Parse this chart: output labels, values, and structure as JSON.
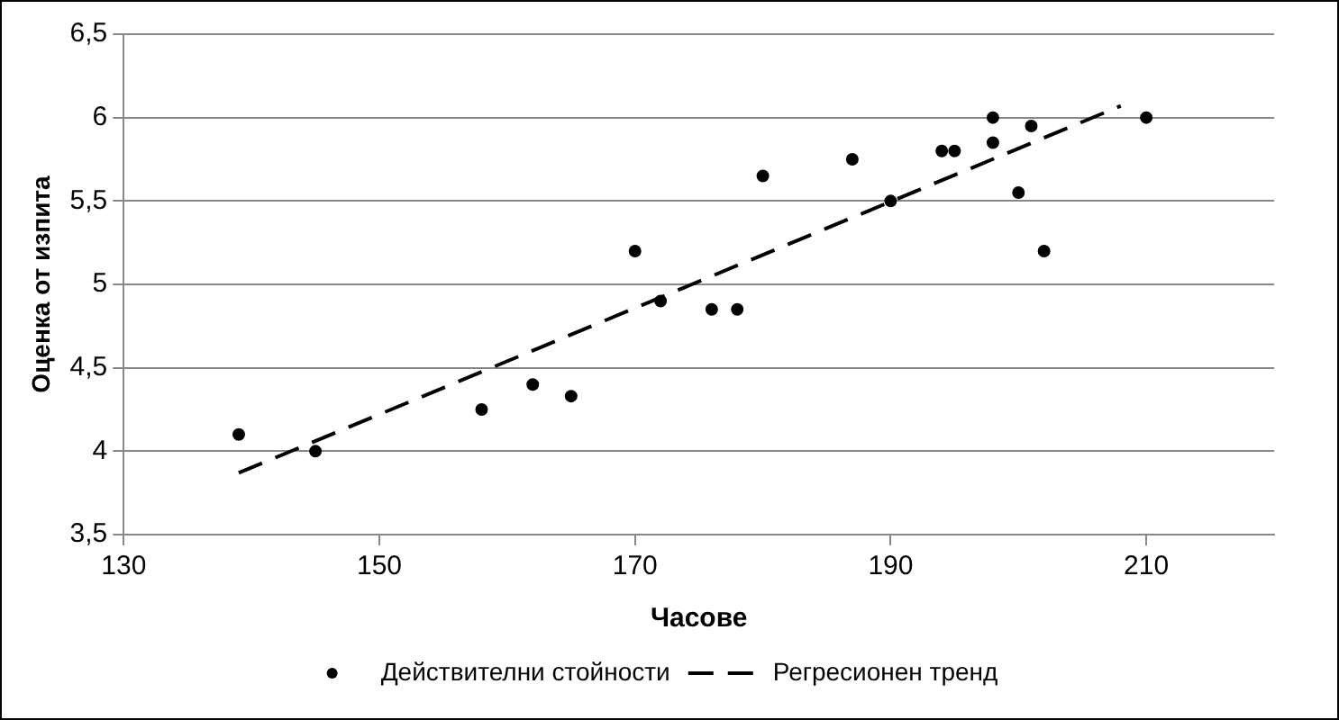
{
  "chart_data": {
    "type": "scatter",
    "xlabel": "Часове",
    "ylabel": "Оценка от изпита",
    "xlim": [
      130,
      220
    ],
    "xticks": [
      130,
      150,
      170,
      190,
      210
    ],
    "ylim": [
      3.5,
      6.5
    ],
    "yticks": [
      {
        "value": 3.5,
        "label": "3,5"
      },
      4,
      {
        "value": 4.5,
        "label": "4,5"
      },
      5,
      {
        "value": 5.5,
        "label": "5,5"
      },
      6,
      {
        "value": 6.5,
        "label": "6,5"
      }
    ],
    "grid": "y",
    "legend": "bottom",
    "series": [
      {
        "name": "Действителни стойности",
        "color": "#000000",
        "marker": "circle",
        "x": [
          139,
          145,
          158,
          162,
          165,
          170,
          172,
          176,
          178,
          180,
          187,
          190,
          194,
          195,
          198,
          198,
          200,
          201,
          202,
          210
        ],
        "values": [
          4.1,
          4.0,
          4.25,
          4.4,
          4.33,
          5.2,
          4.9,
          4.85,
          4.85,
          5.65,
          5.75,
          5.5,
          5.8,
          5.8,
          6.0,
          5.85,
          5.55,
          5.95,
          5.2,
          6.0
        ]
      },
      {
        "name": "Регресионен тренд",
        "type": "line",
        "color": "#000000",
        "line_style": "dashed",
        "marker": "none",
        "x": [
          139,
          208
        ],
        "values": [
          3.87,
          6.07
        ]
      }
    ]
  }
}
